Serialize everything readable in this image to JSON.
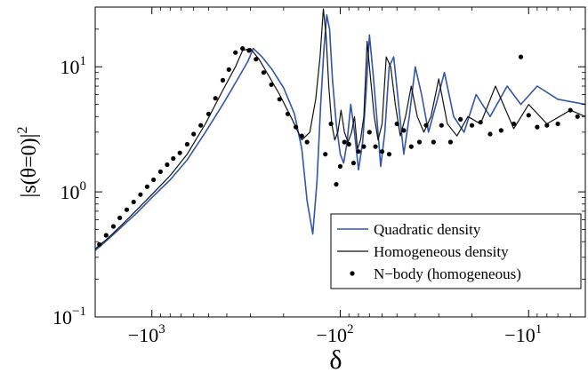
{
  "chart_data": {
    "type": "line",
    "xlabel": "δ",
    "ylabel": "|s(θ=0)|",
    "ylabel_sup": "2",
    "x_scale": "log-negative",
    "y_scale": "log",
    "xlim": [
      -2000,
      -5
    ],
    "ylim": [
      0.1,
      30
    ],
    "grid": false,
    "legend_position": "bottom-right",
    "x_ticks": [
      {
        "value": -1000,
        "base": "−10",
        "exp": "3"
      },
      {
        "value": -100,
        "base": "−10",
        "exp": "2"
      },
      {
        "value": -10,
        "base": "−10",
        "exp": "1"
      }
    ],
    "y_ticks": [
      {
        "value": 0.1,
        "base": "10",
        "exp": "−1"
      },
      {
        "value": 1,
        "base": "10",
        "exp": "0"
      },
      {
        "value": 10,
        "base": "10",
        "exp": "1"
      }
    ],
    "series": [
      {
        "name": "Quadratic density",
        "style": "line",
        "color": "#3355a8",
        "x": [
          -2000,
          -1700,
          -1400,
          -1200,
          -1000,
          -800,
          -650,
          -520,
          -420,
          -350,
          -310,
          -290,
          -260,
          -230,
          -200,
          -175,
          -160,
          -150,
          -140,
          -133,
          -127,
          -122,
          -118,
          -114,
          -110,
          -105,
          -100,
          -96,
          -92,
          -88,
          -84,
          -80,
          -76,
          -73,
          -70,
          -67,
          -64,
          -61,
          -58,
          -55,
          -52,
          -49,
          -46,
          -43,
          -40,
          -37,
          -34,
          -31,
          -28,
          -25,
          -22,
          -19,
          -16,
          -13,
          -11,
          -9,
          -7,
          -5
        ],
        "y": [
          0.34,
          0.42,
          0.55,
          0.68,
          0.9,
          1.25,
          1.8,
          3.0,
          5.0,
          8.0,
          11.0,
          14.0,
          12.0,
          9.5,
          6.8,
          4.2,
          2.2,
          0.85,
          0.46,
          1.2,
          5.0,
          14.0,
          26.0,
          20.0,
          8.0,
          3.5,
          2.0,
          1.7,
          2.5,
          5.0,
          3.0,
          1.5,
          2.5,
          6.0,
          18.0,
          9.0,
          4.0,
          1.6,
          3.0,
          10.0,
          12.0,
          5.0,
          2.0,
          4.0,
          10.0,
          6.0,
          3.0,
          5.0,
          9.0,
          4.0,
          3.0,
          6.0,
          4.0,
          7.0,
          5.0,
          7.0,
          5.5,
          5.0
        ]
      },
      {
        "name": "Homogeneous density",
        "style": "line",
        "color": "#111111",
        "x": [
          -2000,
          -1700,
          -1400,
          -1200,
          -1000,
          -800,
          -650,
          -520,
          -420,
          -360,
          -330,
          -300,
          -270,
          -240,
          -210,
          -180,
          -160,
          -145,
          -135,
          -128,
          -123,
          -119,
          -115,
          -111,
          -107,
          -103,
          -99,
          -95,
          -91,
          -87,
          -84,
          -81,
          -78,
          -75,
          -72,
          -69,
          -66,
          -63,
          -60,
          -57,
          -54,
          -51,
          -48,
          -45,
          -42,
          -39,
          -36,
          -33,
          -30,
          -27,
          -24,
          -21,
          -18,
          -15,
          -12,
          -10,
          -8,
          -6,
          -5
        ],
        "y": [
          0.35,
          0.43,
          0.57,
          0.72,
          0.95,
          1.35,
          2.0,
          3.5,
          6.5,
          10.0,
          13.5,
          14.0,
          11.5,
          8.5,
          6.0,
          3.8,
          2.6,
          3.0,
          5.5,
          12.0,
          29.0,
          18.0,
          7.0,
          3.5,
          2.6,
          3.0,
          4.5,
          3.0,
          2.5,
          3.0,
          4.0,
          2.2,
          2.6,
          4.0,
          16.0,
          8.0,
          4.0,
          2.6,
          3.5,
          12.0,
          10.0,
          5.0,
          2.8,
          4.0,
          7.0,
          4.0,
          3.0,
          4.0,
          8.0,
          3.5,
          2.8,
          4.0,
          3.5,
          7.0,
          3.2,
          5.0,
          3.5,
          4.5,
          4.0
        ]
      },
      {
        "name": "N−body (homogeneous)",
        "style": "dots",
        "color": "#000000",
        "x": [
          -1900,
          -1750,
          -1600,
          -1480,
          -1360,
          -1250,
          -1150,
          -1060,
          -980,
          -900,
          -830,
          -770,
          -710,
          -650,
          -600,
          -550,
          -500,
          -460,
          -420,
          -390,
          -360,
          -330,
          -305,
          -280,
          -255,
          -232,
          -210,
          -190,
          -172,
          -160,
          -150,
          -120,
          -112,
          -105,
          -100,
          -95,
          -90,
          -85,
          -80,
          -75,
          -70,
          -65,
          -60,
          -55,
          -50,
          -46,
          -42,
          -38,
          -35,
          -32,
          -29,
          -26,
          -23,
          -20,
          -18,
          -16,
          -14,
          -12,
          -11,
          -10,
          -9,
          -8,
          -7,
          -6,
          -5.5
        ],
        "y": [
          0.38,
          0.45,
          0.53,
          0.62,
          0.72,
          0.83,
          0.95,
          1.1,
          1.25,
          1.45,
          1.65,
          1.85,
          2.05,
          2.4,
          2.9,
          3.4,
          4.2,
          5.6,
          7.8,
          9.5,
          13.0,
          14.0,
          13.5,
          11.5,
          9.0,
          7.2,
          5.5,
          4.2,
          3.3,
          2.8,
          2.5,
          2.0,
          3.5,
          1.15,
          1.6,
          2.5,
          2.4,
          1.7,
          2.1,
          2.3,
          3.0,
          2.3,
          2.1,
          2.0,
          3.5,
          3.1,
          2.3,
          2.5,
          3.4,
          2.5,
          3.4,
          2.5,
          3.8,
          3.4,
          3.6,
          2.9,
          3.1,
          3.5,
          12.0,
          4.1,
          3.3,
          3.4,
          3.5,
          4.5,
          4.0
        ]
      }
    ]
  }
}
